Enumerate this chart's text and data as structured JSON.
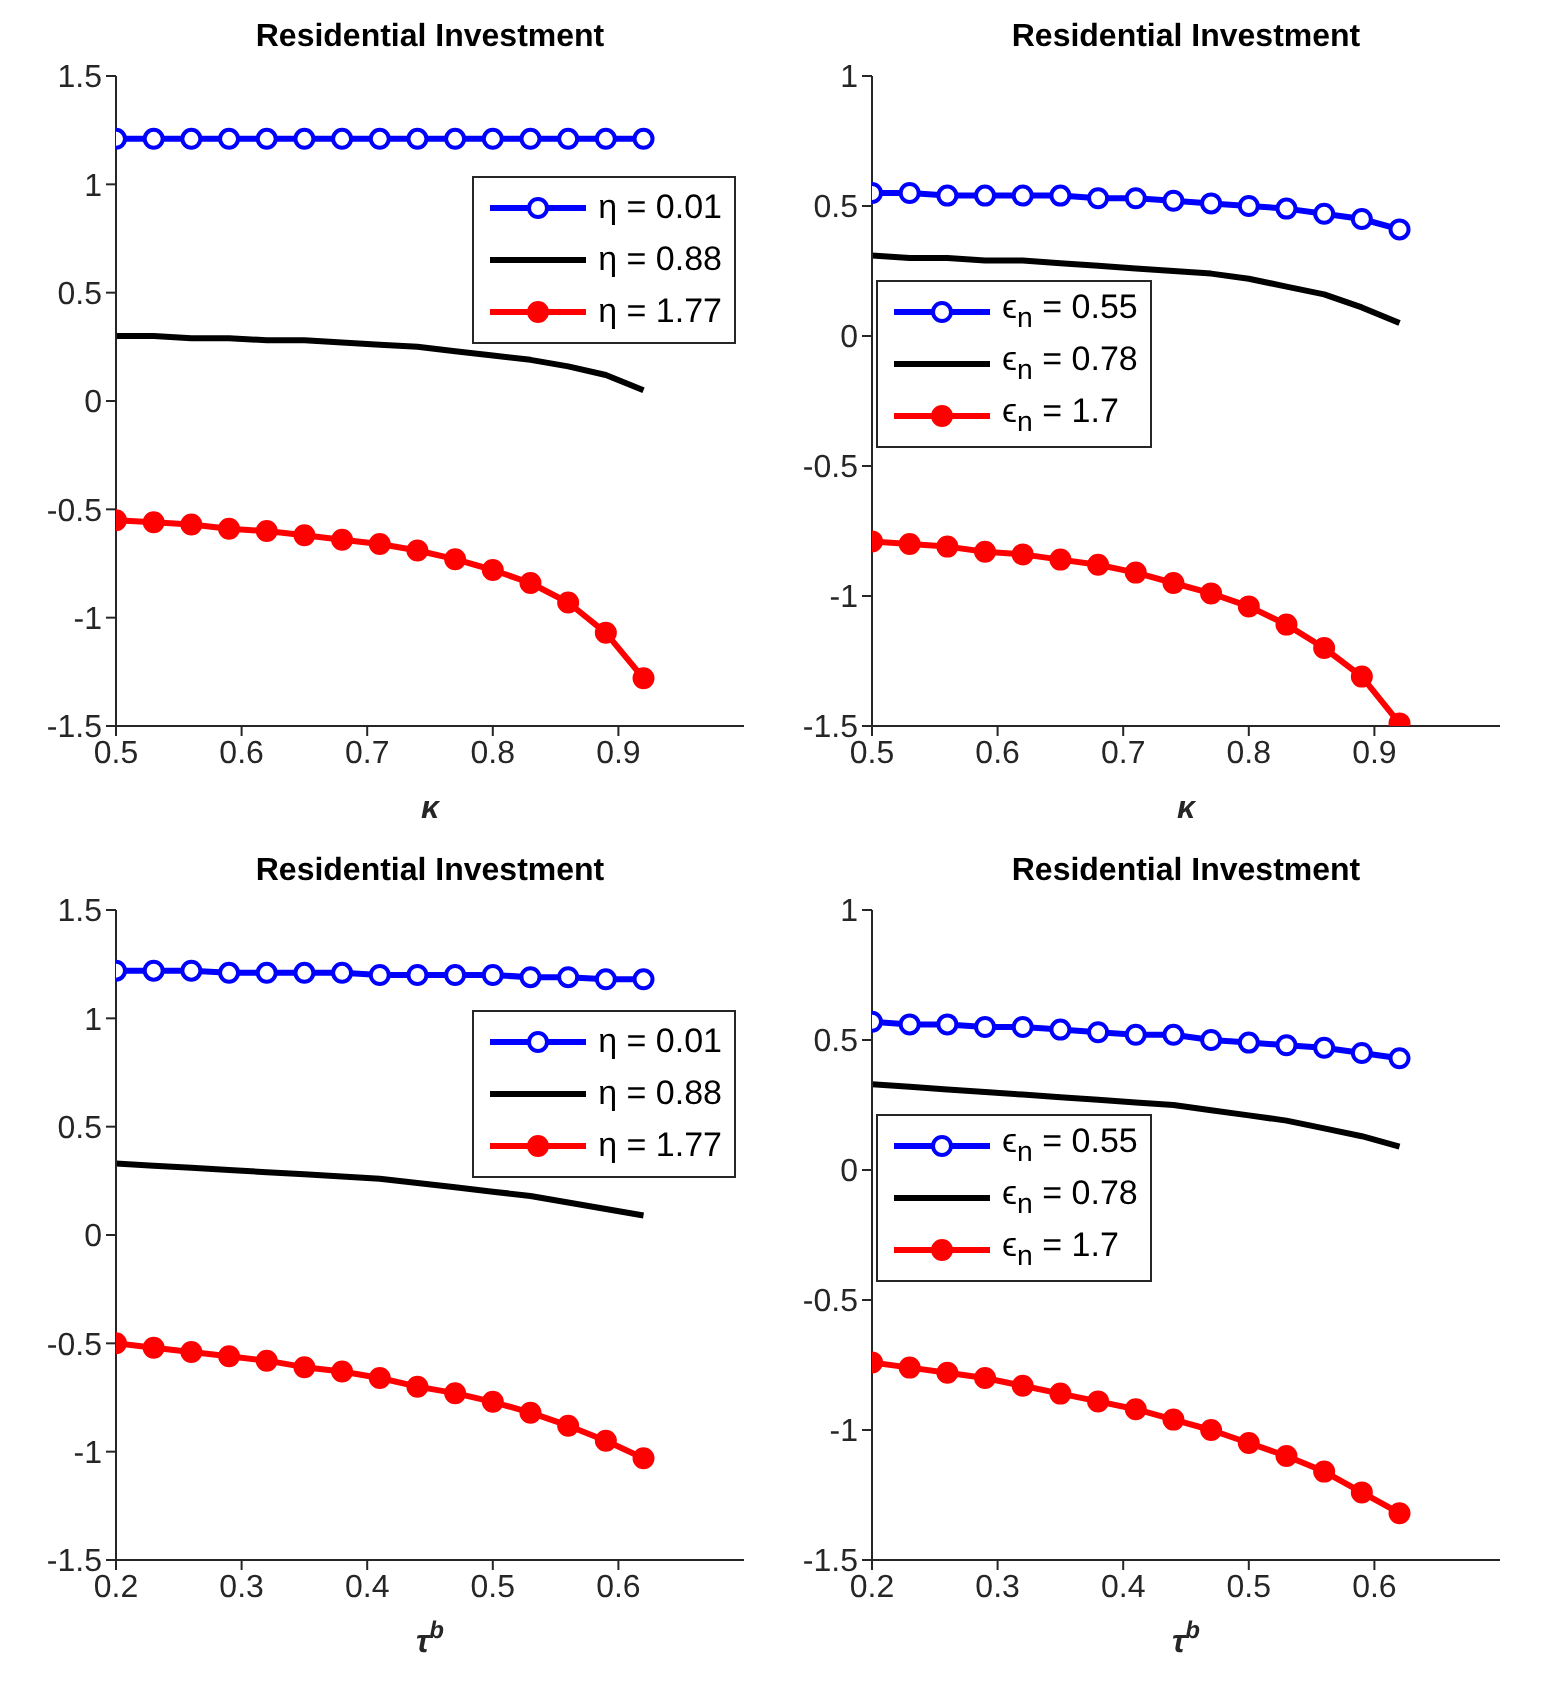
{
  "chart_data": [
    {
      "type": "line",
      "title": "Residential Investment",
      "xlabel": "κ",
      "legend": "top right",
      "xlim": [
        0.5,
        1
      ],
      "xticks": [
        0.5,
        0.6,
        0.7,
        0.8,
        0.9
      ],
      "ylim": [
        -1.5,
        1.5
      ],
      "yticks": [
        -1.5,
        -1,
        -0.5,
        0,
        0.5,
        1,
        1.5
      ],
      "x": [
        0.5,
        0.53,
        0.56,
        0.59,
        0.62,
        0.65,
        0.68,
        0.71,
        0.74,
        0.77,
        0.8,
        0.83,
        0.86,
        0.89,
        0.92
      ],
      "series": [
        {
          "name": "η = 0.01",
          "color": "#0000ff",
          "marker": "circle",
          "values": [
            1.21,
            1.21,
            1.21,
            1.21,
            1.21,
            1.21,
            1.21,
            1.21,
            1.21,
            1.21,
            1.21,
            1.21,
            1.21,
            1.21,
            1.21
          ]
        },
        {
          "name": "η = 0.88",
          "color": "#000000",
          "marker": "none",
          "values": [
            0.3,
            0.3,
            0.29,
            0.29,
            0.28,
            0.28,
            0.27,
            0.26,
            0.25,
            0.23,
            0.21,
            0.19,
            0.16,
            0.12,
            0.05
          ]
        },
        {
          "name": "η = 1.77",
          "color": "#ff0000",
          "marker": "circle",
          "values": [
            -0.55,
            -0.56,
            -0.57,
            -0.59,
            -0.6,
            -0.62,
            -0.64,
            -0.66,
            -0.69,
            -0.73,
            -0.78,
            -0.84,
            -0.93,
            -1.07,
            -1.28
          ]
        }
      ]
    },
    {
      "type": "line",
      "title": "Residential Investment",
      "xlabel": "κ",
      "legend": "left",
      "xlim": [
        0.5,
        1
      ],
      "xticks": [
        0.5,
        0.6,
        0.7,
        0.8,
        0.9
      ],
      "ylim": [
        -1.5,
        1
      ],
      "yticks": [
        -1.5,
        -1,
        -0.5,
        0,
        0.5,
        1
      ],
      "x": [
        0.5,
        0.53,
        0.56,
        0.59,
        0.62,
        0.65,
        0.68,
        0.71,
        0.74,
        0.77,
        0.8,
        0.83,
        0.86,
        0.89,
        0.92
      ],
      "series": [
        {
          "name": "ϵ$_{n}$ = 0.55",
          "color": "#0000ff",
          "marker": "circle",
          "values": [
            0.55,
            0.55,
            0.54,
            0.54,
            0.54,
            0.54,
            0.53,
            0.53,
            0.52,
            0.51,
            0.5,
            0.49,
            0.47,
            0.45,
            0.41
          ]
        },
        {
          "name": "ϵ$_{n}$ = 0.78",
          "color": "#000000",
          "marker": "none",
          "values": [
            0.31,
            0.3,
            0.3,
            0.29,
            0.29,
            0.28,
            0.27,
            0.26,
            0.25,
            0.24,
            0.22,
            0.19,
            0.16,
            0.11,
            0.05
          ]
        },
        {
          "name": "ϵ$_{n}$ = 1.7",
          "color": "#ff0000",
          "marker": "circle",
          "values": [
            -0.79,
            -0.8,
            -0.81,
            -0.83,
            -0.84,
            -0.86,
            -0.88,
            -0.91,
            -0.95,
            -0.99,
            -1.04,
            -1.11,
            -1.2,
            -1.31,
            -1.49
          ]
        }
      ]
    },
    {
      "type": "line",
      "title": "Residential Investment",
      "xlabel": "τ$^{b}$",
      "legend": "top right",
      "xlim": [
        0.2,
        0.7
      ],
      "xticks": [
        0.2,
        0.3,
        0.4,
        0.5,
        0.6
      ],
      "ylim": [
        -1.5,
        1.5
      ],
      "yticks": [
        -1.5,
        -1,
        -0.5,
        0,
        0.5,
        1,
        1.5
      ],
      "x": [
        0.2,
        0.23,
        0.26,
        0.29,
        0.32,
        0.35,
        0.38,
        0.41,
        0.44,
        0.47,
        0.5,
        0.53,
        0.56,
        0.59,
        0.62
      ],
      "series": [
        {
          "name": "η = 0.01",
          "color": "#0000ff",
          "marker": "circle",
          "values": [
            1.22,
            1.22,
            1.22,
            1.21,
            1.21,
            1.21,
            1.21,
            1.2,
            1.2,
            1.2,
            1.2,
            1.19,
            1.19,
            1.18,
            1.18
          ]
        },
        {
          "name": "η = 0.88",
          "color": "#000000",
          "marker": "none",
          "values": [
            0.33,
            0.32,
            0.31,
            0.3,
            0.29,
            0.28,
            0.27,
            0.26,
            0.24,
            0.22,
            0.2,
            0.18,
            0.15,
            0.12,
            0.09
          ]
        },
        {
          "name": "η = 1.77",
          "color": "#ff0000",
          "marker": "circle",
          "values": [
            -0.5,
            -0.52,
            -0.54,
            -0.56,
            -0.58,
            -0.61,
            -0.63,
            -0.66,
            -0.7,
            -0.73,
            -0.77,
            -0.82,
            -0.88,
            -0.95,
            -1.03
          ]
        }
      ]
    },
    {
      "type": "line",
      "title": "Residential Investment",
      "xlabel": "τ$^{b}$",
      "legend": "left",
      "xlim": [
        0.2,
        0.7
      ],
      "xticks": [
        0.2,
        0.3,
        0.4,
        0.5,
        0.6
      ],
      "ylim": [
        -1.5,
        1
      ],
      "yticks": [
        -1.5,
        -1,
        -0.5,
        0,
        0.5,
        1
      ],
      "x": [
        0.2,
        0.23,
        0.26,
        0.29,
        0.32,
        0.35,
        0.38,
        0.41,
        0.44,
        0.47,
        0.5,
        0.53,
        0.56,
        0.59,
        0.62
      ],
      "series": [
        {
          "name": "ϵ$_{n}$ = 0.55",
          "color": "#0000ff",
          "marker": "circle",
          "values": [
            0.57,
            0.56,
            0.56,
            0.55,
            0.55,
            0.54,
            0.53,
            0.52,
            0.52,
            0.5,
            0.49,
            0.48,
            0.47,
            0.45,
            0.43
          ]
        },
        {
          "name": "ϵ$_{n}$ = 0.78",
          "color": "#000000",
          "marker": "none",
          "values": [
            0.33,
            0.32,
            0.31,
            0.3,
            0.29,
            0.28,
            0.27,
            0.26,
            0.25,
            0.23,
            0.21,
            0.19,
            0.16,
            0.13,
            0.09
          ]
        },
        {
          "name": "ϵ$_{n}$ = 1.7",
          "color": "#ff0000",
          "marker": "circle",
          "values": [
            -0.74,
            -0.76,
            -0.78,
            -0.8,
            -0.83,
            -0.86,
            -0.89,
            -0.92,
            -0.96,
            -1,
            -1.05,
            -1.1,
            -1.16,
            -1.24,
            -1.32
          ]
        }
      ]
    }
  ]
}
